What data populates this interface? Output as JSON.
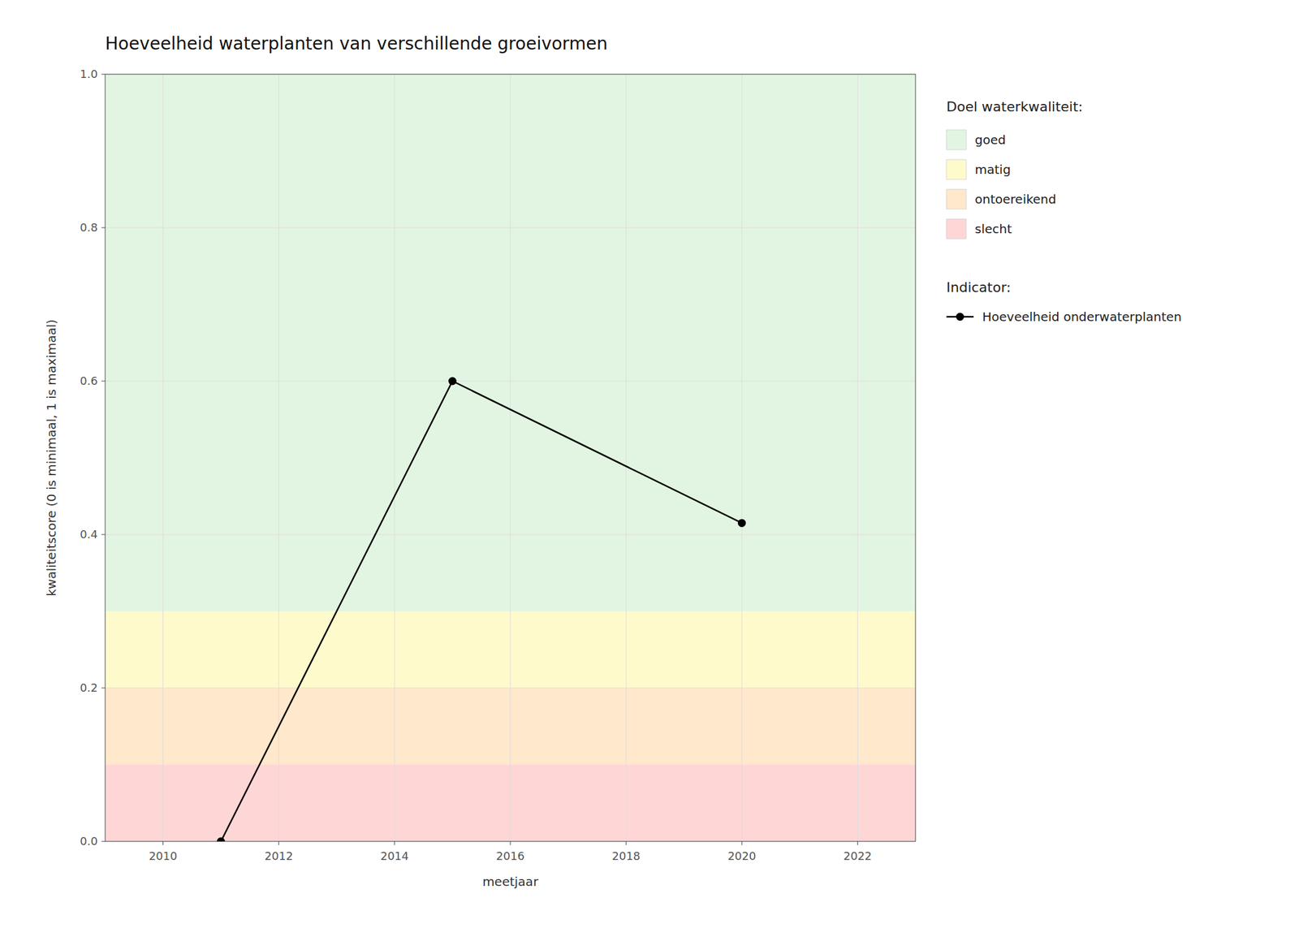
{
  "chart_data": {
    "type": "line",
    "title": "Hoeveelheid waterplanten van verschillende groeivormen",
    "xlabel": "meetjaar",
    "ylabel": "kwaliteitscore (0 is minimaal, 1 is maximaal)",
    "xlim": [
      2009,
      2023
    ],
    "ylim": [
      0.0,
      1.0
    ],
    "xticks": [
      2010,
      2012,
      2014,
      2016,
      2018,
      2020,
      2022
    ],
    "yticks": [
      {
        "value": 0.0,
        "label": "0.0"
      },
      0.2,
      0.4,
      0.6,
      0.8,
      {
        "value": 1.0,
        "label": "1.0"
      }
    ],
    "x": [
      2011,
      2015,
      2020
    ],
    "series": [
      {
        "name": "Hoeveelheid onderwaterplanten",
        "color": "#000000",
        "marker": "circle",
        "values": [
          0.0,
          0.6,
          0.415
        ]
      }
    ],
    "bands": [
      {
        "ymin": 0.0,
        "ymax": 0.1,
        "color": "#FFD6D6",
        "label": "slecht"
      },
      {
        "ymin": 0.1,
        "ymax": 0.2,
        "color": "#FFE8CC",
        "label": "ontoereikend"
      },
      {
        "ymin": 0.2,
        "ymax": 0.3,
        "color": "#FFFACC",
        "label": "matig"
      },
      {
        "ymin": 0.3,
        "ymax": 1.0,
        "color": "#E2F5E2",
        "label": "goed"
      }
    ],
    "legend_title_bands": "Doel waterkwaliteit:",
    "legend_title_series": "Indicator:",
    "grid": true,
    "legend": "right"
  }
}
